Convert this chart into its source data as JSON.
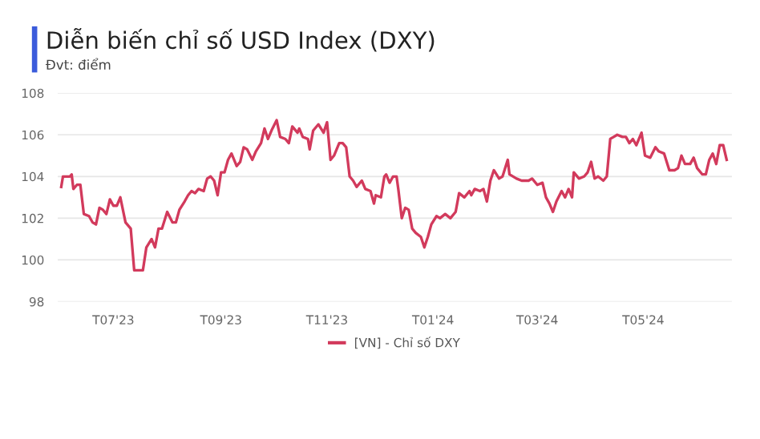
{
  "chart_data": {
    "type": "line",
    "title": "Diễn biến chỉ số USD Index (DXY)",
    "subtitle": "Đvt: điểm",
    "x": [
      "2023-06-01",
      "2023-06-02",
      "2023-06-06",
      "2023-06-07",
      "2023-06-08",
      "2023-06-10",
      "2023-06-12",
      "2023-06-14",
      "2023-06-17",
      "2023-06-19",
      "2023-06-21",
      "2023-06-23",
      "2023-06-25",
      "2023-06-27",
      "2023-06-29",
      "2023-07-01",
      "2023-07-03",
      "2023-07-05",
      "2023-07-08",
      "2023-07-11",
      "2023-07-13",
      "2023-07-15",
      "2023-07-18",
      "2023-07-20",
      "2023-07-23",
      "2023-07-25",
      "2023-07-27",
      "2023-07-29",
      "2023-08-01",
      "2023-08-04",
      "2023-08-06",
      "2023-08-08",
      "2023-08-11",
      "2023-08-13",
      "2023-08-15",
      "2023-08-17",
      "2023-08-19",
      "2023-08-22",
      "2023-08-24",
      "2023-08-26",
      "2023-08-28",
      "2023-08-30",
      "2023-09-01",
      "2023-09-03",
      "2023-09-05",
      "2023-09-07",
      "2023-09-10",
      "2023-09-12",
      "2023-09-14",
      "2023-09-16",
      "2023-09-19",
      "2023-09-21",
      "2023-09-24",
      "2023-09-26",
      "2023-09-28",
      "2023-09-30",
      "2023-10-03",
      "2023-10-05",
      "2023-10-08",
      "2023-10-10",
      "2023-10-12",
      "2023-10-15",
      "2023-10-16",
      "2023-10-18",
      "2023-10-21",
      "2023-10-22",
      "2023-10-24",
      "2023-10-27",
      "2023-10-30",
      "2023-11-01",
      "2023-11-03",
      "2023-11-05",
      "2023-11-08",
      "2023-11-10",
      "2023-11-12",
      "2023-11-14",
      "2023-11-16",
      "2023-11-18",
      "2023-11-21",
      "2023-11-23",
      "2023-11-26",
      "2023-11-28",
      "2023-11-29",
      "2023-12-02",
      "2023-12-04",
      "2023-12-05",
      "2023-12-07",
      "2023-12-09",
      "2023-12-11",
      "2023-12-12",
      "2023-12-14",
      "2023-12-16",
      "2023-12-18",
      "2023-12-20",
      "2023-12-22",
      "2023-12-25",
      "2023-12-27",
      "2023-12-29",
      "2023-12-31",
      "2024-01-03",
      "2024-01-05",
      "2024-01-08",
      "2024-01-11",
      "2024-01-14",
      "2024-01-16",
      "2024-01-19",
      "2024-01-22",
      "2024-01-23",
      "2024-01-25",
      "2024-01-28",
      "2024-01-30",
      "2024-02-01",
      "2024-02-03",
      "2024-02-05",
      "2024-02-08",
      "2024-02-10",
      "2024-02-13",
      "2024-02-14",
      "2024-02-18",
      "2024-02-21",
      "2024-02-25",
      "2024-02-27",
      "2024-03-01",
      "2024-03-04",
      "2024-03-06",
      "2024-03-08",
      "2024-03-10",
      "2024-03-12",
      "2024-03-15",
      "2024-03-17",
      "2024-03-19",
      "2024-03-21",
      "2024-03-22",
      "2024-03-25",
      "2024-03-28",
      "2024-03-30",
      "2024-04-01",
      "2024-04-03",
      "2024-04-05",
      "2024-04-08",
      "2024-04-10",
      "2024-04-12",
      "2024-04-14",
      "2024-04-16",
      "2024-04-19",
      "2024-04-21",
      "2024-04-23",
      "2024-04-25",
      "2024-04-27",
      "2024-04-30",
      "2024-05-02",
      "2024-05-05",
      "2024-05-08",
      "2024-05-10",
      "2024-05-13",
      "2024-05-16",
      "2024-05-19",
      "2024-05-21",
      "2024-05-23",
      "2024-05-25",
      "2024-05-28",
      "2024-05-30",
      "2024-06-01",
      "2024-06-04",
      "2024-06-06",
      "2024-06-08",
      "2024-06-10",
      "2024-06-12",
      "2024-06-14",
      "2024-06-16",
      "2024-06-18"
    ],
    "series": [
      {
        "name": "[VN] - Chỉ số DXY",
        "color": "#d23a5c",
        "values": [
          103.5,
          104.0,
          104.0,
          104.1,
          103.4,
          103.6,
          103.6,
          102.2,
          102.1,
          101.8,
          101.7,
          102.5,
          102.4,
          102.2,
          102.9,
          102.6,
          102.6,
          103.0,
          101.8,
          101.5,
          99.5,
          99.5,
          99.5,
          100.6,
          101.0,
          100.6,
          101.5,
          101.5,
          102.3,
          101.8,
          101.8,
          102.4,
          102.8,
          103.1,
          103.3,
          103.2,
          103.4,
          103.3,
          103.9,
          104.0,
          103.8,
          103.1,
          104.2,
          104.2,
          104.8,
          105.1,
          104.5,
          104.7,
          105.4,
          105.3,
          104.8,
          105.2,
          105.6,
          106.3,
          105.8,
          106.2,
          106.7,
          105.9,
          105.8,
          105.6,
          106.4,
          106.1,
          106.3,
          105.9,
          105.8,
          105.3,
          106.2,
          106.5,
          106.1,
          106.6,
          104.8,
          105.0,
          105.6,
          105.6,
          105.4,
          104.0,
          103.8,
          103.5,
          103.8,
          103.4,
          103.3,
          102.7,
          103.1,
          103.0,
          104.0,
          104.1,
          103.7,
          104.0,
          104.0,
          103.4,
          102.0,
          102.5,
          102.4,
          101.5,
          101.3,
          101.1,
          100.6,
          101.1,
          101.7,
          102.1,
          102.0,
          102.2,
          102.0,
          102.3,
          103.2,
          103.0,
          103.3,
          103.1,
          103.4,
          103.3,
          103.4,
          102.8,
          103.8,
          104.3,
          103.9,
          104.0,
          104.8,
          104.1,
          103.9,
          103.8,
          103.8,
          103.9,
          103.6,
          103.7,
          103.0,
          102.7,
          102.3,
          102.8,
          103.3,
          103.0,
          103.4,
          103.0,
          104.2,
          103.9,
          104.0,
          104.2,
          104.7,
          103.9,
          104.0,
          103.8,
          104.0,
          105.8,
          105.9,
          106.0,
          105.9,
          105.9,
          105.6,
          105.8,
          105.5,
          106.1,
          105.0,
          104.9,
          105.4,
          105.2,
          105.1,
          104.3,
          104.3,
          104.4,
          105.0,
          104.6,
          104.6,
          104.9,
          104.4,
          104.1,
          104.1,
          104.8,
          105.1,
          104.6,
          105.5,
          105.5,
          104.8
        ]
      }
    ],
    "xlim": [
      "2023-05-30",
      "2024-06-21"
    ],
    "xticks": [
      {
        "value": "2023-07-01",
        "label": "T07'23"
      },
      {
        "value": "2023-09-01",
        "label": "T09'23"
      },
      {
        "value": "2023-11-01",
        "label": "T11'23"
      },
      {
        "value": "2024-01-01",
        "label": "T01'24"
      },
      {
        "value": "2024-03-01",
        "label": "T03'24"
      },
      {
        "value": "2024-05-01",
        "label": "T05'24"
      }
    ],
    "ylim": [
      98,
      108
    ],
    "yticks": [
      98,
      100,
      102,
      104,
      106,
      108
    ],
    "grid": "y",
    "legend": "bottom",
    "marker": "none",
    "line_style": "solid"
  }
}
